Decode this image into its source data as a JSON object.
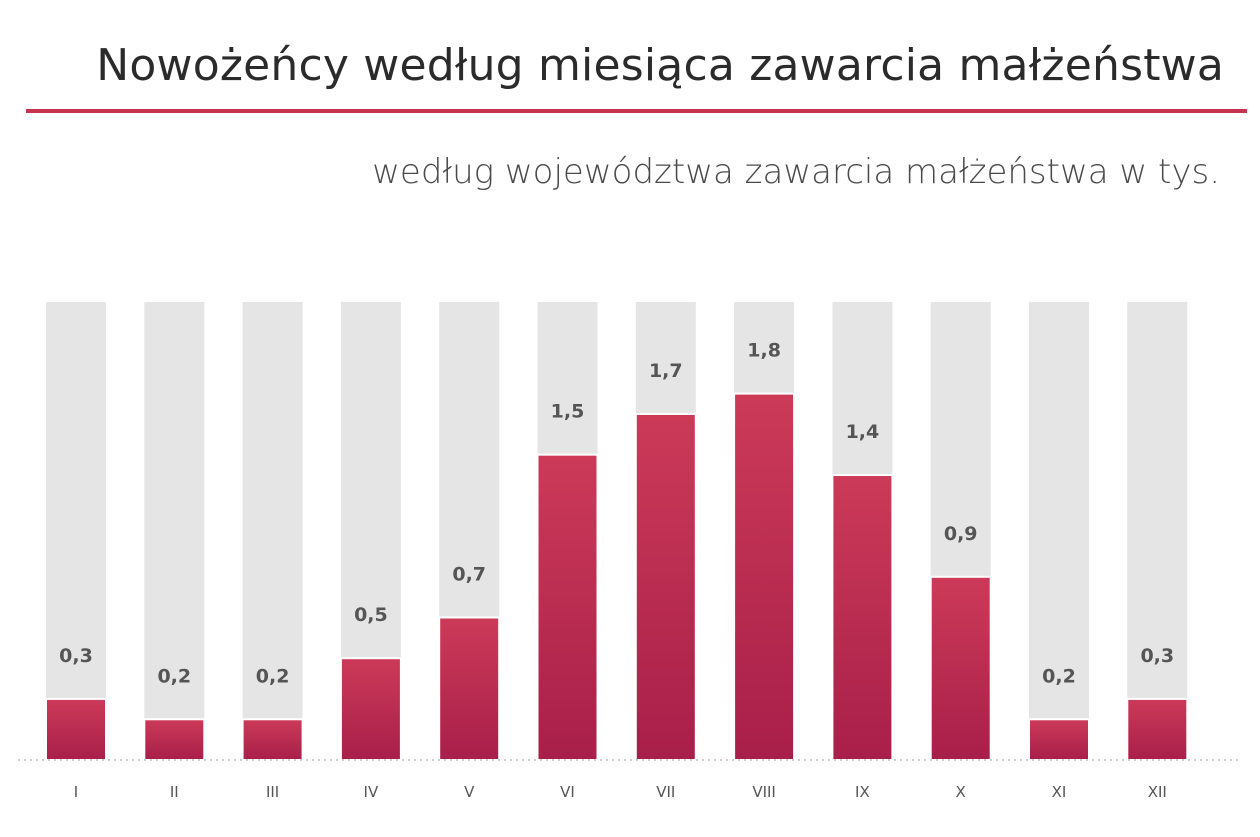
{
  "header": {
    "title": "Nowożeńcy według miesiąca zawarcia małżeństwa",
    "subtitle": "według województwa zawarcia małżeństwa w tys."
  },
  "colors": {
    "accent": "#c8344f",
    "bar_top": "#cc3a58",
    "bar_bottom": "#a81f4a",
    "track": "#e5e5e5",
    "text": "#2b2b2b",
    "label": "#555555",
    "baseline": "#bdbdbd"
  },
  "chart_data": {
    "type": "bar",
    "categories": [
      "I",
      "II",
      "III",
      "IV",
      "V",
      "VI",
      "VII",
      "VIII",
      "IX",
      "X",
      "XI",
      "XII"
    ],
    "values": [
      0.3,
      0.2,
      0.2,
      0.5,
      0.7,
      1.5,
      1.7,
      1.8,
      1.4,
      0.9,
      0.2,
      0.3
    ],
    "value_labels": [
      "0,3",
      "0,2",
      "0,2",
      "0,5",
      "0,7",
      "1,5",
      "1,7",
      "1,8",
      "1,4",
      "0,9",
      "0,2",
      "0,3"
    ],
    "xlabel": "",
    "ylabel": "",
    "ylim": [
      0,
      2.25
    ],
    "grid": false,
    "legend": "none"
  }
}
